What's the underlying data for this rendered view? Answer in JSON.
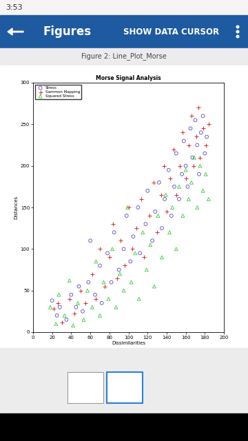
{
  "screen": {
    "status_bar": {
      "time": "3:53"
    },
    "app_bar": {
      "title": "Figures",
      "action": "SHOW DATA CURSOR"
    },
    "figure_caption": "Figure 2: Line_Plot_Morse"
  },
  "chart_data": {
    "type": "scatter",
    "title": "Morse Signal Analysis",
    "x_label": "Dissimilarities",
    "y_label": "Distances",
    "xlim": [
      0,
      200
    ],
    "xticks": [
      0,
      20,
      40,
      60,
      80,
      100,
      120,
      140,
      160,
      180,
      200
    ],
    "ylim": [
      0,
      300
    ],
    "yticks": [
      0,
      50,
      100,
      150,
      200,
      250,
      300
    ],
    "grid": false,
    "legend": "upper left",
    "series": [
      {
        "name": "Stress",
        "color": "#5b45c2",
        "marker": "circle",
        "x": [
          20,
          25,
          28,
          35,
          40,
          45,
          48,
          52,
          58,
          60,
          65,
          70,
          72,
          78,
          82,
          85,
          90,
          95,
          98,
          102,
          105,
          110,
          112,
          118,
          120,
          125,
          128,
          132,
          135,
          138,
          142,
          145,
          148,
          150,
          153,
          156,
          158,
          160,
          162,
          165,
          167,
          170,
          172,
          174,
          176,
          178,
          180,
          182
        ],
        "values": [
          38,
          20,
          30,
          15,
          45,
          30,
          55,
          25,
          60,
          110,
          45,
          80,
          35,
          95,
          60,
          120,
          75,
          100,
          140,
          85,
          115,
          150,
          95,
          130,
          170,
          110,
          145,
          180,
          125,
          160,
          195,
          140,
          175,
          215,
          160,
          190,
          230,
          200,
          175,
          245,
          210,
          255,
          225,
          190,
          240,
          260,
          215,
          235
        ]
      },
      {
        "name": "Sammon Mapping",
        "color": "#d62728",
        "marker": "plus",
        "x": [
          22,
          26,
          30,
          38,
          43,
          50,
          55,
          62,
          66,
          70,
          75,
          80,
          84,
          88,
          92,
          96,
          100,
          104,
          108,
          113,
          116,
          122,
          126,
          130,
          134,
          137,
          140,
          144,
          147,
          150,
          154,
          157,
          160,
          163,
          166,
          168,
          171,
          173,
          175,
          178,
          181,
          184
        ],
        "values": [
          28,
          35,
          12,
          40,
          22,
          50,
          35,
          70,
          40,
          100,
          55,
          90,
          130,
          65,
          110,
          80,
          150,
          100,
          125,
          160,
          90,
          140,
          180,
          120,
          165,
          200,
          145,
          185,
          220,
          165,
          200,
          240,
          185,
          225,
          260,
          200,
          235,
          270,
          210,
          245,
          225,
          250
        ]
      },
      {
        "name": "Squared Stress",
        "color": "#33cc33",
        "marker": "triangle",
        "x": [
          18,
          24,
          27,
          33,
          38,
          42,
          47,
          53,
          57,
          62,
          66,
          70,
          74,
          79,
          83,
          87,
          91,
          95,
          99,
          103,
          107,
          111,
          115,
          119,
          123,
          127,
          131,
          135,
          139,
          143,
          146,
          150,
          153,
          157,
          160,
          163,
          166,
          169,
          172,
          175,
          178,
          181,
          184
        ],
        "values": [
          30,
          10,
          45,
          20,
          62,
          8,
          35,
          15,
          50,
          30,
          85,
          20,
          60,
          40,
          100,
          30,
          70,
          50,
          150,
          60,
          95,
          40,
          120,
          75,
          105,
          55,
          140,
          90,
          165,
          120,
          150,
          100,
          175,
          140,
          195,
          160,
          180,
          210,
          150,
          200,
          170,
          190,
          160
        ]
      }
    ]
  }
}
